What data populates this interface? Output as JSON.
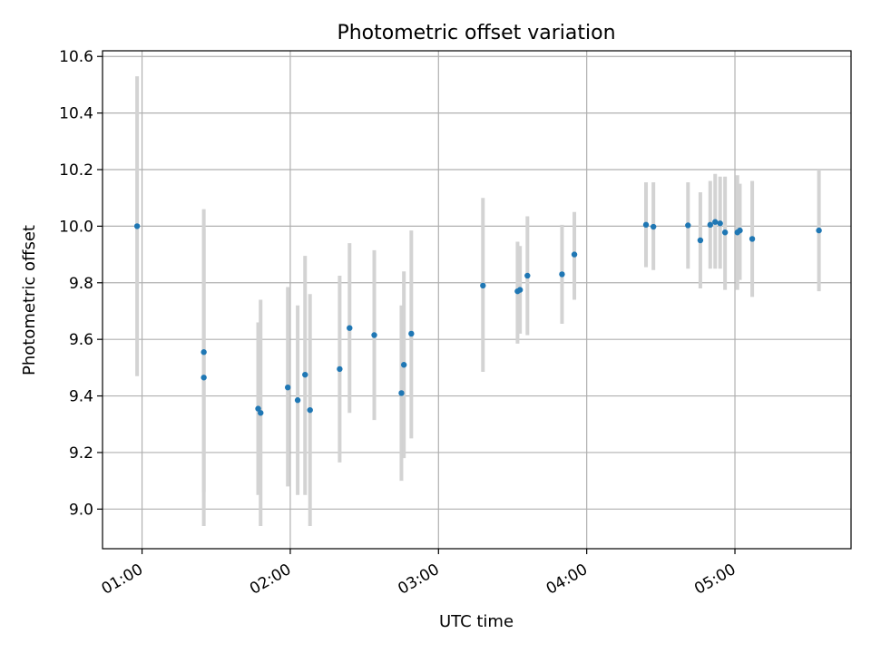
{
  "chart_data": {
    "type": "scatter",
    "title": "Photometric offset variation",
    "xlabel": "UTC time",
    "ylabel": "Photometric offset",
    "x_unit": "UTC time (HH:MM)",
    "xlim": [
      "00:44",
      "05:47"
    ],
    "ylim": [
      8.86,
      10.62
    ],
    "x_ticks": [
      "01:00",
      "02:00",
      "03:00",
      "04:00",
      "05:00"
    ],
    "y_ticks": [
      "9.0",
      "9.2",
      "9.4",
      "9.6",
      "9.8",
      "10.0",
      "10.2",
      "10.4",
      "10.6"
    ],
    "grid": true,
    "marker_color": "#1f77b4",
    "errorbar_color": "#d3d3d3",
    "points": [
      {
        "x": "00:58",
        "y": 10.0,
        "ylow": 9.47,
        "yhigh": 10.53
      },
      {
        "x": "01:25",
        "y": 9.555,
        "ylow": 9.06,
        "yhigh": 10.06
      },
      {
        "x": "01:25",
        "y": 9.465,
        "ylow": 8.94,
        "yhigh": 9.99
      },
      {
        "x": "01:47",
        "y": 9.355,
        "ylow": 9.05,
        "yhigh": 9.66
      },
      {
        "x": "01:48",
        "y": 9.34,
        "ylow": 8.94,
        "yhigh": 9.74
      },
      {
        "x": "01:59",
        "y": 9.43,
        "ylow": 9.08,
        "yhigh": 9.785
      },
      {
        "x": "02:03",
        "y": 9.385,
        "ylow": 9.05,
        "yhigh": 9.72
      },
      {
        "x": "02:06",
        "y": 9.475,
        "ylow": 9.05,
        "yhigh": 9.895
      },
      {
        "x": "02:08",
        "y": 9.35,
        "ylow": 8.94,
        "yhigh": 9.76
      },
      {
        "x": "02:20",
        "y": 9.495,
        "ylow": 9.165,
        "yhigh": 9.825
      },
      {
        "x": "02:24",
        "y": 9.64,
        "ylow": 9.34,
        "yhigh": 9.94
      },
      {
        "x": "02:34",
        "y": 9.615,
        "ylow": 9.315,
        "yhigh": 9.915
      },
      {
        "x": "02:45",
        "y": 9.41,
        "ylow": 9.1,
        "yhigh": 9.72
      },
      {
        "x": "02:46",
        "y": 9.51,
        "ylow": 9.18,
        "yhigh": 9.84
      },
      {
        "x": "02:49",
        "y": 9.62,
        "ylow": 9.25,
        "yhigh": 9.985
      },
      {
        "x": "03:18",
        "y": 9.79,
        "ylow": 9.485,
        "yhigh": 10.1
      },
      {
        "x": "03:32",
        "y": 9.77,
        "ylow": 9.585,
        "yhigh": 9.945
      },
      {
        "x": "03:33",
        "y": 9.775,
        "ylow": 9.62,
        "yhigh": 9.93
      },
      {
        "x": "03:36",
        "y": 9.825,
        "ylow": 9.615,
        "yhigh": 10.035
      },
      {
        "x": "03:50",
        "y": 9.83,
        "ylow": 9.655,
        "yhigh": 10.005
      },
      {
        "x": "03:55",
        "y": 9.9,
        "ylow": 9.74,
        "yhigh": 10.05
      },
      {
        "x": "04:24",
        "y": 10.005,
        "ylow": 9.855,
        "yhigh": 10.155
      },
      {
        "x": "04:27",
        "y": 9.998,
        "ylow": 9.845,
        "yhigh": 10.155
      },
      {
        "x": "04:41",
        "y": 10.003,
        "ylow": 9.85,
        "yhigh": 10.155
      },
      {
        "x": "04:46",
        "y": 9.95,
        "ylow": 9.78,
        "yhigh": 10.12
      },
      {
        "x": "04:50",
        "y": 10.005,
        "ylow": 9.85,
        "yhigh": 10.16
      },
      {
        "x": "04:52",
        "y": 10.015,
        "ylow": 9.85,
        "yhigh": 10.185
      },
      {
        "x": "04:54",
        "y": 10.01,
        "ylow": 9.85,
        "yhigh": 10.175
      },
      {
        "x": "04:56",
        "y": 9.978,
        "ylow": 9.775,
        "yhigh": 10.175
      },
      {
        "x": "05:01",
        "y": 9.978,
        "ylow": 9.775,
        "yhigh": 10.18
      },
      {
        "x": "05:02",
        "y": 9.985,
        "ylow": 9.81,
        "yhigh": 10.15
      },
      {
        "x": "05:07",
        "y": 9.955,
        "ylow": 9.75,
        "yhigh": 10.16
      },
      {
        "x": "05:34",
        "y": 9.985,
        "ylow": 9.77,
        "yhigh": 10.2
      }
    ]
  }
}
